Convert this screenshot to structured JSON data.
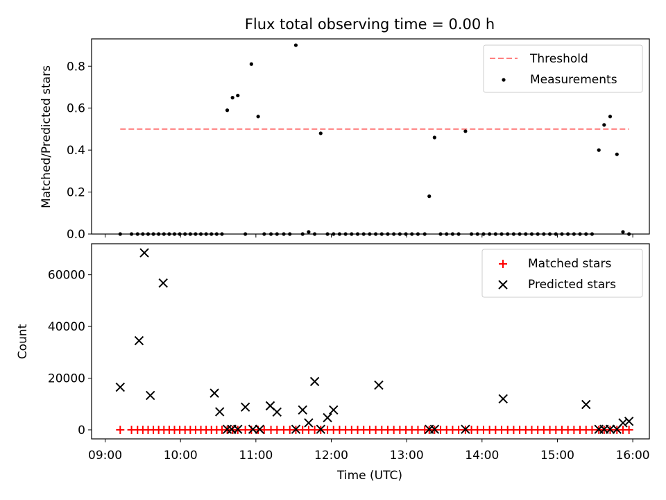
{
  "chart_data": [
    {
      "type": "scatter",
      "title": "Flux total observing time = 0.00 h",
      "ylabel": "Matched/Predicted stars",
      "xlabel": "",
      "ylim": [
        0,
        0.93
      ],
      "yticks": [
        0.0,
        0.2,
        0.4,
        0.6,
        0.8
      ],
      "ytick_labels": [
        "0.0",
        "0.2",
        "0.4",
        "0.6",
        "0.8"
      ],
      "x_unit": "hours UTC",
      "legend_position": "top-right",
      "threshold": {
        "name": "Threshold",
        "y": 0.5,
        "x_start": 9.2,
        "x_end": 15.95,
        "color": "#ff7f7f",
        "style": "dashed"
      },
      "series": [
        {
          "name": "Measurements",
          "marker": "dot",
          "color": "#000000",
          "x": [
            9.2,
            9.35,
            9.43,
            9.5,
            9.57,
            9.64,
            9.71,
            9.78,
            9.85,
            9.92,
            9.99,
            10.06,
            10.13,
            10.2,
            10.27,
            10.34,
            10.41,
            10.48,
            10.55,
            10.62,
            10.69,
            10.76,
            10.86,
            10.94,
            11.03,
            11.11,
            11.2,
            11.28,
            11.37,
            11.45,
            11.53,
            11.62,
            11.7,
            11.78,
            11.86,
            11.95,
            12.03,
            12.11,
            12.19,
            12.27,
            12.35,
            12.43,
            12.51,
            12.59,
            12.67,
            12.75,
            12.83,
            12.91,
            12.99,
            13.07,
            13.15,
            13.24,
            13.3,
            13.37,
            13.45,
            13.53,
            13.61,
            13.69,
            13.78,
            13.86,
            13.94,
            14.02,
            14.1,
            14.18,
            14.26,
            14.34,
            14.42,
            14.5,
            14.58,
            14.66,
            14.74,
            14.82,
            14.9,
            14.98,
            15.06,
            15.14,
            15.22,
            15.3,
            15.38,
            15.46,
            15.55,
            15.62,
            15.7,
            15.79,
            15.87,
            15.95
          ],
          "y": [
            0.0,
            0.0,
            0.0,
            0.0,
            0.0,
            0.0,
            0.0,
            0.0,
            0.0,
            0.0,
            0.0,
            0.0,
            0.0,
            0.0,
            0.0,
            0.0,
            0.0,
            0.0,
            0.0,
            0.59,
            0.65,
            0.66,
            0.0,
            0.81,
            0.56,
            0.0,
            0.0,
            0.0,
            0.0,
            0.0,
            0.9,
            0.0,
            0.01,
            0.0,
            0.48,
            0.0,
            0.0,
            0.0,
            0.0,
            0.0,
            0.0,
            0.0,
            0.0,
            0.0,
            0.0,
            0.0,
            0.0,
            0.0,
            0.0,
            0.0,
            0.0,
            0.0,
            0.18,
            0.46,
            0.0,
            0.0,
            0.0,
            0.0,
            0.49,
            0.0,
            0.0,
            0.0,
            0.0,
            0.0,
            0.0,
            0.0,
            0.0,
            0.0,
            0.0,
            0.0,
            0.0,
            0.0,
            0.0,
            0.0,
            0.0,
            0.0,
            0.0,
            0.0,
            0.0,
            0.0,
            0.4,
            0.52,
            0.56,
            0.38,
            0.01,
            0.0
          ]
        }
      ]
    },
    {
      "type": "scatter",
      "title": "",
      "ylabel": "Count",
      "xlabel": "Time (UTC)",
      "ylim": [
        -3500,
        72000
      ],
      "yticks": [
        0,
        20000,
        40000,
        60000
      ],
      "ytick_labels": [
        "0",
        "20000",
        "40000",
        "60000"
      ],
      "xlim": [
        8.82,
        16.22
      ],
      "xticks": [
        9,
        10,
        11,
        12,
        13,
        14,
        15,
        16
      ],
      "xtick_labels": [
        "09:00",
        "10:00",
        "11:00",
        "12:00",
        "13:00",
        "14:00",
        "15:00",
        "16:00"
      ],
      "legend_position": "top-right",
      "series": [
        {
          "name": "Matched stars",
          "marker": "plus",
          "color": "#ff0000",
          "x": [
            9.2,
            9.35,
            9.43,
            9.5,
            9.57,
            9.64,
            9.71,
            9.78,
            9.85,
            9.92,
            9.99,
            10.06,
            10.13,
            10.2,
            10.27,
            10.34,
            10.41,
            10.48,
            10.55,
            10.62,
            10.69,
            10.76,
            10.86,
            10.94,
            11.03,
            11.11,
            11.2,
            11.28,
            11.37,
            11.45,
            11.53,
            11.62,
            11.7,
            11.78,
            11.86,
            11.95,
            12.03,
            12.11,
            12.19,
            12.27,
            12.35,
            12.43,
            12.51,
            12.59,
            12.67,
            12.75,
            12.83,
            12.91,
            12.99,
            13.07,
            13.15,
            13.24,
            13.3,
            13.37,
            13.45,
            13.53,
            13.61,
            13.69,
            13.78,
            13.86,
            13.94,
            14.02,
            14.1,
            14.18,
            14.26,
            14.34,
            14.42,
            14.5,
            14.58,
            14.66,
            14.74,
            14.82,
            14.9,
            14.98,
            15.06,
            15.14,
            15.22,
            15.3,
            15.38,
            15.46,
            15.55,
            15.62,
            15.7,
            15.79,
            15.87,
            15.95
          ],
          "y": [
            0,
            0,
            0,
            0,
            0,
            0,
            0,
            0,
            0,
            0,
            0,
            0,
            0,
            0,
            0,
            0,
            0,
            0,
            0,
            0,
            0,
            0,
            0,
            0,
            0,
            0,
            0,
            0,
            0,
            0,
            0,
            0,
            0,
            0,
            0,
            0,
            0,
            0,
            0,
            0,
            0,
            0,
            0,
            0,
            0,
            0,
            0,
            0,
            0,
            0,
            0,
            0,
            0,
            0,
            0,
            0,
            0,
            0,
            0,
            0,
            0,
            0,
            0,
            0,
            0,
            0,
            0,
            0,
            0,
            0,
            0,
            0,
            0,
            0,
            0,
            0,
            0,
            0,
            0,
            0,
            0,
            0,
            0,
            0,
            0,
            0
          ]
        },
        {
          "name": "Predicted stars",
          "marker": "x",
          "color": "#000000",
          "x": [
            9.2,
            9.45,
            9.52,
            9.6,
            9.77,
            10.45,
            10.52,
            10.62,
            10.68,
            10.76,
            10.86,
            10.96,
            11.05,
            11.19,
            11.28,
            11.53,
            11.62,
            11.7,
            11.78,
            11.86,
            11.95,
            12.03,
            12.63,
            13.3,
            13.37,
            13.78,
            14.28,
            15.38,
            15.55,
            15.62,
            15.7,
            15.79,
            15.87,
            15.95
          ],
          "y": [
            16500,
            34500,
            68500,
            13300,
            56800,
            14200,
            7000,
            200,
            200,
            200,
            8800,
            200,
            200,
            9300,
            6900,
            200,
            7700,
            2700,
            18700,
            200,
            4700,
            7700,
            17300,
            200,
            200,
            200,
            12000,
            9800,
            200,
            200,
            200,
            200,
            2700,
            3300
          ]
        }
      ]
    }
  ]
}
